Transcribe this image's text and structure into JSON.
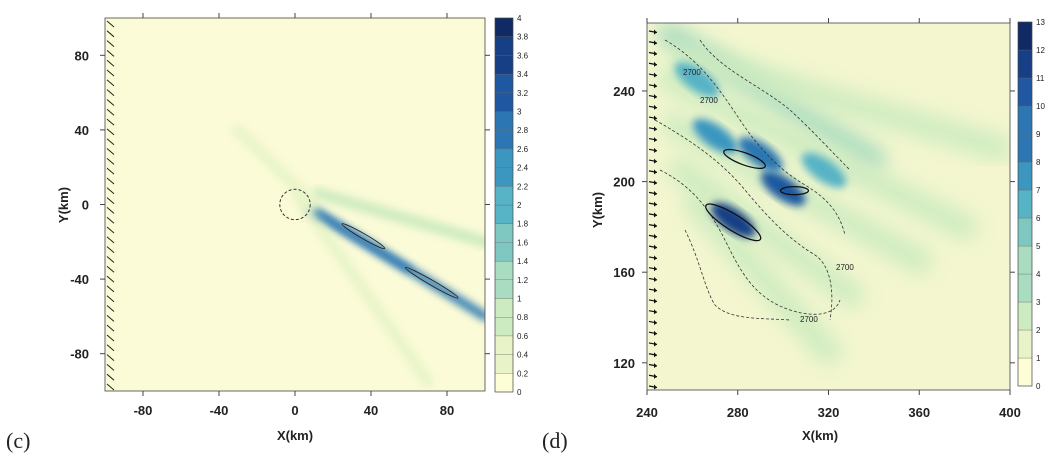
{
  "chart_data": [
    {
      "type": "heatmap",
      "panel_label": "(c)",
      "xlabel": "X(km)",
      "ylabel": "Y(km)",
      "xlim": [
        -100,
        100
      ],
      "ylim": [
        -100,
        100
      ],
      "x_ticks": [
        -80,
        -40,
        0,
        40,
        80
      ],
      "y_ticks": [
        -80,
        -40,
        0,
        40,
        80
      ],
      "colorbar_levels": [
        "0",
        "0.2",
        "0.4",
        "0.6",
        "0.8",
        "1",
        "1.2",
        "1.4",
        "1.6",
        "1.8",
        "2",
        "2.2",
        "2.4",
        "2.6",
        "2.8",
        "3",
        "3.2",
        "3.4",
        "3.6",
        "3.8",
        "4"
      ],
      "circle": {
        "cx": 0,
        "cy": 0,
        "r": 8
      },
      "wake_bands": [
        {
          "from": [
            8,
            -2
          ],
          "to": [
            100,
            -60
          ],
          "peak": 2.8
        },
        {
          "from": [
            12,
            6
          ],
          "to": [
            100,
            -20
          ],
          "peak": 0.6
        },
        {
          "from": [
            2,
            4
          ],
          "to": [
            70,
            -95
          ],
          "peak": 0.5
        },
        {
          "from": [
            -30,
            40
          ],
          "to": [
            10,
            0
          ],
          "peak": 0.2
        }
      ],
      "contours": [
        {
          "center": [
            36,
            -17
          ],
          "length": 26,
          "angle": -30
        },
        {
          "center": [
            72,
            -42
          ],
          "length": 32,
          "angle": -30
        }
      ]
    },
    {
      "type": "heatmap",
      "panel_label": "(d)",
      "xlabel": "X(km)",
      "ylabel": "Y(km)",
      "xlim": [
        240,
        400
      ],
      "ylim": [
        108,
        270
      ],
      "x_ticks": [
        240,
        280,
        320,
        360,
        400
      ],
      "y_ticks": [
        120,
        160,
        200,
        240
      ],
      "colorbar_levels": [
        "0",
        "1",
        "2",
        "3",
        "4",
        "5",
        "6",
        "7",
        "8",
        "9",
        "10",
        "11",
        "12",
        "13"
      ],
      "contour_labels": [
        "2700",
        "2700",
        "2700",
        "2700"
      ],
      "hotspots": [
        {
          "x": 278,
          "y": 183,
          "value": 12
        },
        {
          "x": 300,
          "y": 197,
          "value": 10
        },
        {
          "x": 270,
          "y": 220,
          "value": 8
        },
        {
          "x": 262,
          "y": 245,
          "value": 7
        },
        {
          "x": 290,
          "y": 212,
          "value": 9
        },
        {
          "x": 318,
          "y": 205,
          "value": 7
        }
      ]
    }
  ]
}
